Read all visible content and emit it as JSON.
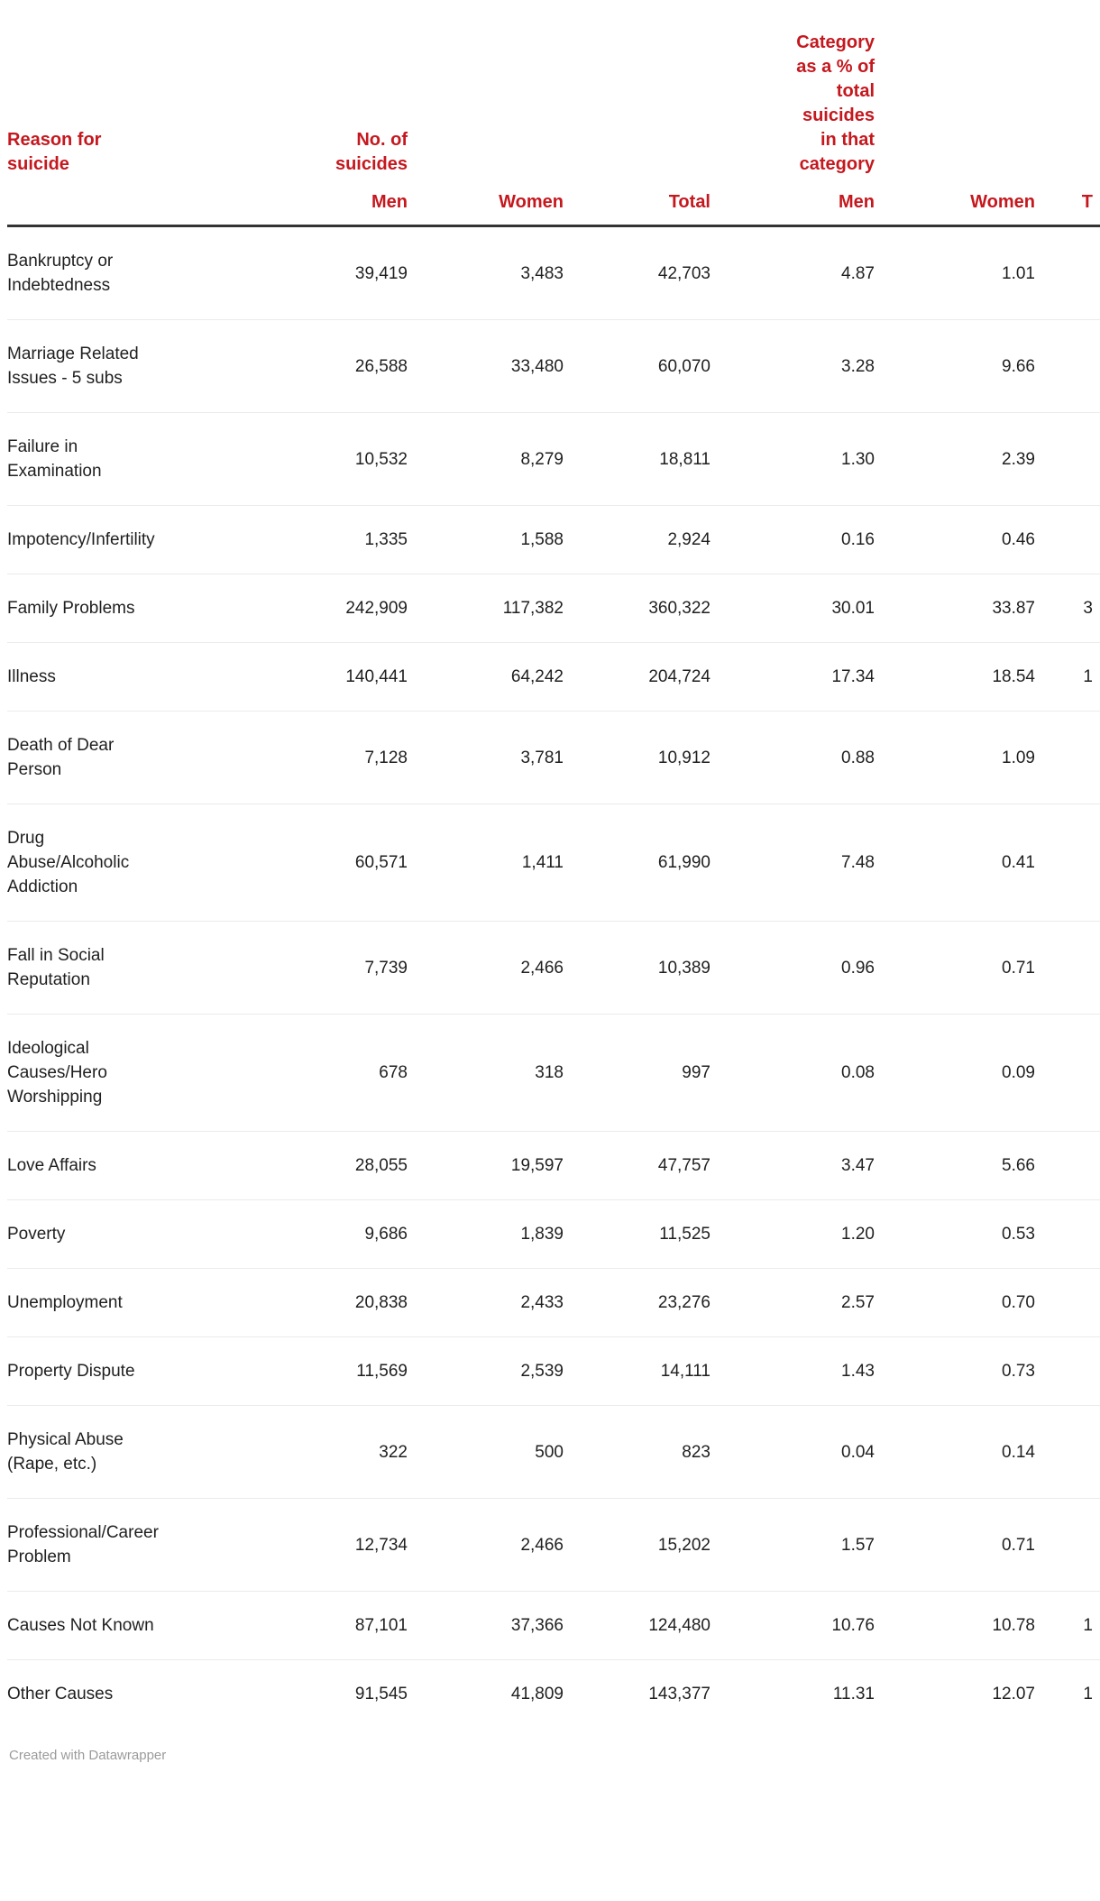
{
  "colors": {
    "accent_red": "#c5181e",
    "body_text": "#1f1f1f",
    "rule_dark": "#333333",
    "rule_light": "#ebebeb",
    "credit_gray": "#9b9b9b"
  },
  "header": {
    "reason": "Reason for\nsuicide",
    "group_no_of_suicides": "No. of\nsuicides",
    "group_category_pct": "Category\nas a % of\ntotal\nsuicides\nin that\ncategory",
    "sub": {
      "men1": "Men",
      "women1": "Women",
      "total1": "Total",
      "men2": "Men",
      "women2": "Women",
      "total2_truncated": "T"
    }
  },
  "rows": [
    {
      "reason": "Bankruptcy or\nIndebtedness",
      "men": "39,419",
      "women": "3,483",
      "total": "42,703",
      "pct_men": "4.87",
      "pct_women": "1.01",
      "pct_total_visible": ""
    },
    {
      "reason": "Marriage Related\nIssues - 5 subs",
      "men": "26,588",
      "women": "33,480",
      "total": "60,070",
      "pct_men": "3.28",
      "pct_women": "9.66",
      "pct_total_visible": ""
    },
    {
      "reason": "Failure in\nExamination",
      "men": "10,532",
      "women": "8,279",
      "total": "18,811",
      "pct_men": "1.30",
      "pct_women": "2.39",
      "pct_total_visible": ""
    },
    {
      "reason": "Impotency/Infertility",
      "men": "1,335",
      "women": "1,588",
      "total": "2,924",
      "pct_men": "0.16",
      "pct_women": "0.46",
      "pct_total_visible": ""
    },
    {
      "reason": "Family Problems",
      "men": "242,909",
      "women": "117,382",
      "total": "360,322",
      "pct_men": "30.01",
      "pct_women": "33.87",
      "pct_total_visible": "3"
    },
    {
      "reason": "Illness",
      "men": "140,441",
      "women": "64,242",
      "total": "204,724",
      "pct_men": "17.34",
      "pct_women": "18.54",
      "pct_total_visible": "1"
    },
    {
      "reason": "Death of Dear\nPerson",
      "men": "7,128",
      "women": "3,781",
      "total": "10,912",
      "pct_men": "0.88",
      "pct_women": "1.09",
      "pct_total_visible": ""
    },
    {
      "reason": "Drug\nAbuse/Alcoholic\nAddiction",
      "men": "60,571",
      "women": "1,411",
      "total": "61,990",
      "pct_men": "7.48",
      "pct_women": "0.41",
      "pct_total_visible": ""
    },
    {
      "reason": "Fall in Social\nReputation",
      "men": "7,739",
      "women": "2,466",
      "total": "10,389",
      "pct_men": "0.96",
      "pct_women": "0.71",
      "pct_total_visible": ""
    },
    {
      "reason": "Ideological\nCauses/Hero\nWorshipping",
      "men": "678",
      "women": "318",
      "total": "997",
      "pct_men": "0.08",
      "pct_women": "0.09",
      "pct_total_visible": ""
    },
    {
      "reason": "Love Affairs",
      "men": "28,055",
      "women": "19,597",
      "total": "47,757",
      "pct_men": "3.47",
      "pct_women": "5.66",
      "pct_total_visible": ""
    },
    {
      "reason": "Poverty",
      "men": "9,686",
      "women": "1,839",
      "total": "11,525",
      "pct_men": "1.20",
      "pct_women": "0.53",
      "pct_total_visible": ""
    },
    {
      "reason": "Unemployment",
      "men": "20,838",
      "women": "2,433",
      "total": "23,276",
      "pct_men": "2.57",
      "pct_women": "0.70",
      "pct_total_visible": ""
    },
    {
      "reason": "Property Dispute",
      "men": "11,569",
      "women": "2,539",
      "total": "14,111",
      "pct_men": "1.43",
      "pct_women": "0.73",
      "pct_total_visible": ""
    },
    {
      "reason": "Physical Abuse\n(Rape, etc.)",
      "men": "322",
      "women": "500",
      "total": "823",
      "pct_men": "0.04",
      "pct_women": "0.14",
      "pct_total_visible": ""
    },
    {
      "reason": "Professional/Career\nProblem",
      "men": "12,734",
      "women": "2,466",
      "total": "15,202",
      "pct_men": "1.57",
      "pct_women": "0.71",
      "pct_total_visible": ""
    },
    {
      "reason": "Causes Not Known",
      "men": "87,101",
      "women": "37,366",
      "total": "124,480",
      "pct_men": "10.76",
      "pct_women": "10.78",
      "pct_total_visible": "1"
    },
    {
      "reason": "Other Causes",
      "men": "91,545",
      "women": "41,809",
      "total": "143,377",
      "pct_men": "11.31",
      "pct_women": "12.07",
      "pct_total_visible": "1"
    }
  ],
  "footer": {
    "credit": "Created with Datawrapper"
  },
  "chart_data": {
    "type": "table",
    "title": "",
    "columns": [
      "Reason for suicide",
      "No. of suicides - Men",
      "No. of suicides - Women",
      "No. of suicides - Total",
      "Category as a % of total suicides in that category - Men",
      "Category as a % of total suicides in that category - Women",
      "Category as a % of total suicides in that category - Total (truncated at right edge)"
    ],
    "rows": [
      [
        "Bankruptcy or Indebtedness",
        39419,
        3483,
        42703,
        4.87,
        1.01,
        ""
      ],
      [
        "Marriage Related Issues - 5 subs",
        26588,
        33480,
        60070,
        3.28,
        9.66,
        ""
      ],
      [
        "Failure in Examination",
        10532,
        8279,
        18811,
        1.3,
        2.39,
        ""
      ],
      [
        "Impotency/Infertility",
        1335,
        1588,
        2924,
        0.16,
        0.46,
        ""
      ],
      [
        "Family Problems",
        242909,
        117382,
        360322,
        30.01,
        33.87,
        "3"
      ],
      [
        "Illness",
        140441,
        64242,
        204724,
        17.34,
        18.54,
        "1"
      ],
      [
        "Death of Dear Person",
        7128,
        3781,
        10912,
        0.88,
        1.09,
        ""
      ],
      [
        "Drug Abuse/Alcoholic Addiction",
        60571,
        1411,
        61990,
        7.48,
        0.41,
        ""
      ],
      [
        "Fall in Social Reputation",
        7739,
        2466,
        10389,
        0.96,
        0.71,
        ""
      ],
      [
        "Ideological Causes/Hero Worshipping",
        678,
        318,
        997,
        0.08,
        0.09,
        ""
      ],
      [
        "Love Affairs",
        28055,
        19597,
        47757,
        3.47,
        5.66,
        ""
      ],
      [
        "Poverty",
        9686,
        1839,
        11525,
        1.2,
        0.53,
        ""
      ],
      [
        "Unemployment",
        20838,
        2433,
        23276,
        2.57,
        0.7,
        ""
      ],
      [
        "Property Dispute",
        11569,
        2539,
        14111,
        1.43,
        0.73,
        ""
      ],
      [
        "Physical Abuse (Rape, etc.)",
        322,
        500,
        823,
        0.04,
        0.14,
        ""
      ],
      [
        "Professional/Career Problem",
        12734,
        2466,
        15202,
        1.57,
        0.71,
        ""
      ],
      [
        "Causes Not Known",
        87101,
        37366,
        124480,
        10.76,
        10.78,
        "1"
      ],
      [
        "Other Causes",
        91545,
        41809,
        143377,
        11.31,
        12.07,
        "1"
      ]
    ],
    "layout": {
      "header_color": "#c5181e",
      "grid": "horizontal-rules",
      "last_column_clipped": true
    }
  }
}
